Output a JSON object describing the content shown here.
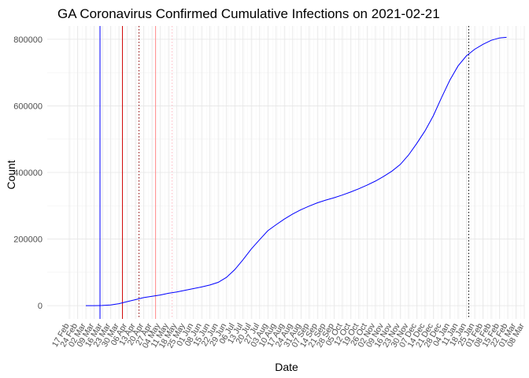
{
  "chart_data": {
    "type": "line",
    "title": "GA Coronavirus Confirmed Cumulative Infections on 2021-02-21",
    "xlabel": "Date",
    "ylabel": "Count",
    "x_range": [
      "2020-02-17",
      "2021-03-08"
    ],
    "ylim": [
      -40000,
      840000
    ],
    "y_ticks": [
      0,
      200000,
      400000,
      600000,
      800000
    ],
    "y_tick_labels": [
      "0",
      "200000",
      "400000",
      "600000",
      "800000"
    ],
    "x_ticks": [
      "2020-02-17",
      "2020-02-24",
      "2020-03-02",
      "2020-03-09",
      "2020-03-16",
      "2020-03-23",
      "2020-03-30",
      "2020-04-06",
      "2020-04-13",
      "2020-04-20",
      "2020-04-27",
      "2020-05-04",
      "2020-05-11",
      "2020-05-18",
      "2020-05-25",
      "2020-06-01",
      "2020-06-08",
      "2020-06-15",
      "2020-06-22",
      "2020-06-29",
      "2020-07-06",
      "2020-07-13",
      "2020-07-20",
      "2020-07-27",
      "2020-08-03",
      "2020-08-10",
      "2020-08-17",
      "2020-08-24",
      "2020-08-31",
      "2020-09-07",
      "2020-09-14",
      "2020-09-21",
      "2020-09-28",
      "2020-10-05",
      "2020-10-12",
      "2020-10-19",
      "2020-10-26",
      "2020-11-02",
      "2020-11-09",
      "2020-11-16",
      "2020-11-23",
      "2020-11-30",
      "2020-12-07",
      "2020-12-14",
      "2020-12-21",
      "2020-12-28",
      "2021-01-04",
      "2021-01-11",
      "2021-01-18",
      "2021-01-25",
      "2021-02-01",
      "2021-02-08",
      "2021-02-15",
      "2021-02-22",
      "2021-03-01",
      "2021-03-08"
    ],
    "x_tick_labels": [
      "17 Feb",
      "24 Feb",
      "02 Mar",
      "09 Mar",
      "16 Mar",
      "23 Mar",
      "30 Mar",
      "06 Apr",
      "13 Apr",
      "20 Apr",
      "27 Apr",
      "04 May",
      "11 May",
      "18 May",
      "25 May",
      "01 Jun",
      "08 Jun",
      "15 Jun",
      "22 Jun",
      "29 Jun",
      "06 Jul",
      "13 Jul",
      "20 Jul",
      "27 Jul",
      "03 Aug",
      "10 Aug",
      "17 Aug",
      "24 Aug",
      "31 Aug",
      "07 Sep",
      "14 Sep",
      "21 Sep",
      "28 Sep",
      "05 Oct",
      "12 Oct",
      "19 Oct",
      "26 Oct",
      "02 Nov",
      "09 Nov",
      "16 Nov",
      "23 Nov",
      "30 Nov",
      "07 Dec",
      "14 Dec",
      "21 Dec",
      "28 Dec",
      "04 Jan",
      "11 Jan",
      "18 Jan",
      "25 Jan",
      "01 Feb",
      "08 Feb",
      "15 Feb",
      "22 Feb",
      "01 Mar",
      "08 Mar"
    ],
    "grid": true,
    "legend": "none",
    "series": [
      {
        "color": "#0000ff",
        "x": [
          "2020-03-02",
          "2020-03-09",
          "2020-03-16",
          "2020-03-23",
          "2020-03-30",
          "2020-04-06",
          "2020-04-13",
          "2020-04-20",
          "2020-04-27",
          "2020-05-04",
          "2020-05-11",
          "2020-05-18",
          "2020-05-25",
          "2020-06-01",
          "2020-06-08",
          "2020-06-15",
          "2020-06-22",
          "2020-06-29",
          "2020-07-06",
          "2020-07-13",
          "2020-07-20",
          "2020-07-27",
          "2020-08-03",
          "2020-08-10",
          "2020-08-17",
          "2020-08-24",
          "2020-08-31",
          "2020-09-07",
          "2020-09-14",
          "2020-09-21",
          "2020-09-28",
          "2020-10-05",
          "2020-10-12",
          "2020-10-19",
          "2020-10-26",
          "2020-11-02",
          "2020-11-09",
          "2020-11-16",
          "2020-11-23",
          "2020-11-30",
          "2020-12-07",
          "2020-12-14",
          "2020-12-21",
          "2020-12-28",
          "2021-01-04",
          "2021-01-11",
          "2021-01-18",
          "2021-01-25",
          "2021-02-01",
          "2021-02-08",
          "2021-02-15",
          "2021-02-21"
        ],
        "values": [
          0,
          0,
          500,
          2000,
          6000,
          12000,
          18000,
          24000,
          28000,
          32000,
          37000,
          41000,
          46000,
          51000,
          56000,
          62000,
          70000,
          85000,
          108000,
          138000,
          170000,
          198000,
          225000,
          243000,
          260000,
          275000,
          288000,
          299000,
          309000,
          317000,
          324000,
          332000,
          341000,
          351000,
          362000,
          374000,
          388000,
          404000,
          424000,
          452000,
          487000,
          525000,
          570000,
          625000,
          677000,
          720000,
          750000,
          770000,
          785000,
          797000,
          804000,
          806000
        ]
      }
    ],
    "reference_lines": [
      {
        "x": "2020-03-14",
        "color": "#0000ff",
        "style": "solid"
      },
      {
        "x": "2020-04-02",
        "color": "#d00000",
        "style": "solid"
      },
      {
        "x": "2020-04-16",
        "color": "#8b0000",
        "style": "dotted"
      },
      {
        "x": "2020-04-30",
        "color": "#ff8c8c",
        "style": "solid"
      },
      {
        "x": "2020-05-14",
        "color": "#ffb6c1",
        "style": "dotted"
      },
      {
        "x": "2021-01-20",
        "color": "#000000",
        "style": "dotted"
      }
    ]
  }
}
